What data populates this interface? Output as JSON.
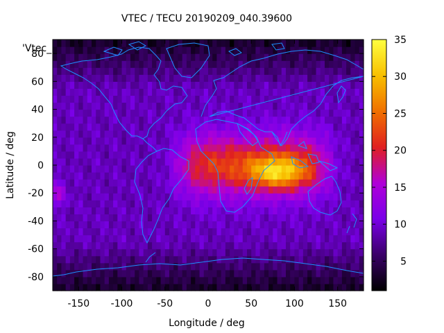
{
  "chart_data": {
    "type": "heatmap",
    "title": "VTEC / TECU 20190209_040.39600",
    "xlabel": "Longitude / deg",
    "ylabel": "Latitude / deg",
    "xlim": [
      -180,
      180
    ],
    "ylim": [
      -90,
      90
    ],
    "xticks": [
      -150,
      -100,
      -50,
      0,
      50,
      100,
      150
    ],
    "yticks": [
      -80,
      -60,
      -40,
      -20,
      0,
      20,
      40,
      60,
      80
    ],
    "colorbar": {
      "min": 1,
      "max": 35,
      "ticks": [
        5,
        10,
        15,
        20,
        25,
        30,
        35
      ]
    },
    "legend_label": "'Vtec_",
    "grid_spacing_deg": 5,
    "colormap": [
      "#000000",
      "#3a0068",
      "#7a00e8",
      "#b000d8",
      "#e02020",
      "#f07000",
      "#f8c000",
      "#ffff40"
    ],
    "coastline_color": "#1e90ff",
    "features": {
      "background_tec": 9,
      "polar_tec": 4,
      "equatorial_anomaly": {
        "lon_range": [
          -30,
          135
        ],
        "lat_center": 0,
        "peak_lon": 80,
        "peak_lat": -5,
        "peak_tec": 33
      },
      "secondary_max": {
        "lon": -175,
        "lat": -20,
        "tec": 16
      }
    }
  }
}
